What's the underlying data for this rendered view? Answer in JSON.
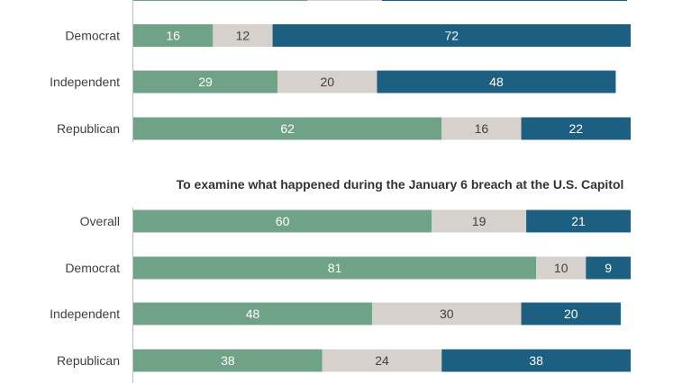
{
  "colors": {
    "green": "#6fa287",
    "gray": "#d6d1cc",
    "blue": "#1d5f80",
    "axis": "#bfbfbf",
    "label_light": "#ffffff",
    "label_dark": "#404040"
  },
  "chart_data": [
    {
      "type": "bar",
      "orientation": "horizontal",
      "stacked": true,
      "title": "",
      "categories": [
        "Democrat",
        "Independent",
        "Republican"
      ],
      "series": [
        {
          "values": [
            16,
            29,
            62
          ]
        },
        {
          "values": [
            12,
            20,
            16
          ]
        },
        {
          "values": [
            72,
            48,
            22
          ]
        }
      ],
      "xlim": [
        0,
        100
      ],
      "grid": false,
      "legend": false,
      "note": ""
    },
    {
      "type": "bar",
      "orientation": "horizontal",
      "stacked": true,
      "title": "To examine what happened during the January 6 breach at the U.S. Capitol",
      "categories": [
        "Overall",
        "Democrat",
        "Independent",
        "Republican"
      ],
      "series": [
        {
          "values": [
            60,
            81,
            48,
            38
          ]
        },
        {
          "values": [
            19,
            10,
            30,
            24
          ]
        },
        {
          "values": [
            21,
            9,
            20,
            38
          ]
        }
      ],
      "xlim": [
        0,
        100
      ],
      "grid": false,
      "legend": false
    }
  ]
}
